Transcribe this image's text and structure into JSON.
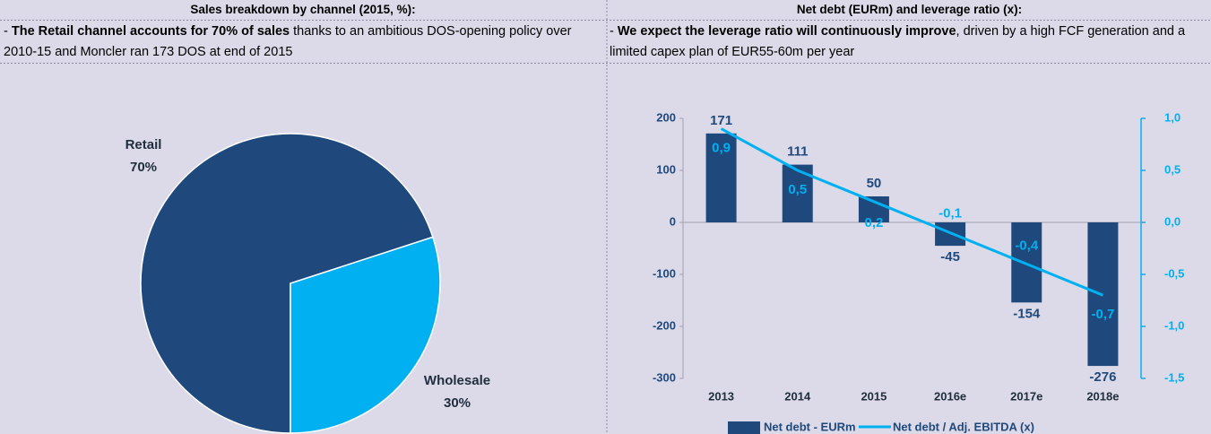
{
  "panels": [
    {
      "header": "Sales breakdown by channel (2015, %):",
      "lead": "-",
      "bold": "The Retail channel accounts for 70% of sales",
      "rest": " thanks to an ambitious DOS-opening policy over 2010-15 and Moncler ran 173 DOS at end of 2015"
    },
    {
      "header": "Net debt (EURm) and leverage ratio (x):",
      "lead": "-",
      "bold": "We expect the leverage ratio will continuously improve",
      "rest": ", driven by a high FCF generation and a limited capex plan of EUR55-60m per year"
    }
  ],
  "chart_data": [
    {
      "type": "pie",
      "categories": [
        "Retail",
        "Wholesale"
      ],
      "values": [
        70,
        30
      ],
      "value_labels": [
        "70%",
        "30%"
      ],
      "colors": [
        "#1f497d",
        "#00b0f0"
      ]
    },
    {
      "type": "bar-line",
      "categories": [
        "2013",
        "2014",
        "2015",
        "2016e",
        "2017e",
        "2018e"
      ],
      "series": [
        {
          "name": "Net debt - EURm",
          "color": "#1f497d",
          "values": [
            171,
            111,
            50,
            -45,
            -154,
            -276
          ]
        },
        {
          "name": "Net debt / Adj. EBITDA (x)",
          "color": "#00b0f0",
          "axis": "y2",
          "values": [
            0.9,
            0.5,
            0.2,
            -0.1,
            -0.4,
            -0.7
          ],
          "value_labels": [
            "0,9",
            "0,5",
            "0,2",
            "-0,1",
            "-0,4",
            "-0,7"
          ]
        }
      ],
      "ylim": [
        -300,
        200
      ],
      "yticks": [
        -300,
        -200,
        -100,
        0,
        100,
        200
      ],
      "y2lim": [
        -1.5,
        1.0
      ],
      "y2ticks": [
        {
          "value": -1.5,
          "label": "-1,5"
        },
        {
          "value": -1.0,
          "label": "-1,0"
        },
        {
          "value": -0.5,
          "label": "-0,5"
        },
        {
          "value": 0.0,
          "label": "0,0"
        },
        {
          "value": 0.5,
          "label": "0,5"
        },
        {
          "value": 1.0,
          "label": "1,0"
        }
      ]
    }
  ]
}
